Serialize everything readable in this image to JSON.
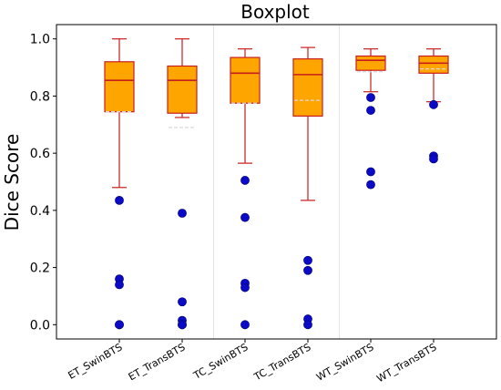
{
  "colors": {
    "box_fill": "#FFA500",
    "box_edge": "#C81E1E",
    "median": "#C81E1E",
    "whisker": "#C81E1E",
    "mean_line": "#D8D8D8",
    "outlier": "#0A0AC8",
    "outlier_edge": "#050580",
    "axes": "#000000",
    "background": "#FFFFFF"
  },
  "chart_data": {
    "type": "box",
    "title": "Boxplot",
    "xlabel": "",
    "ylabel": "Dice Score",
    "ylim": [
      -0.05,
      1.05
    ],
    "yticks": [
      0.0,
      0.2,
      0.4,
      0.6,
      0.8,
      1.0
    ],
    "ytick_labels": [
      "0.0",
      "0.2",
      "0.4",
      "0.6",
      "0.8",
      "1.0"
    ],
    "grid": false,
    "group_separators_after": [
      1,
      3
    ],
    "categories": [
      "ET_SwinBTS",
      "ET_TransBTS",
      "TC_SwinBTS",
      "TC_TransBTS",
      "WT_SwinBTS",
      "WT_TransBTS"
    ],
    "boxes": [
      {
        "label": "ET_SwinBTS",
        "whisker_low": 0.48,
        "q1": 0.745,
        "median": 0.855,
        "q3": 0.92,
        "whisker_high": 1.0,
        "mean": 0.745,
        "outliers": [
          0.435,
          0.16,
          0.14,
          0.0,
          0.0
        ]
      },
      {
        "label": "ET_TransBTS",
        "whisker_low": 0.725,
        "q1": 0.74,
        "median": 0.855,
        "q3": 0.905,
        "whisker_high": 1.0,
        "mean": 0.69,
        "outliers": [
          0.39,
          0.08,
          0.015,
          0.0,
          0.0
        ]
      },
      {
        "label": "TC_SwinBTS",
        "whisker_low": 0.565,
        "q1": 0.775,
        "median": 0.88,
        "q3": 0.935,
        "whisker_high": 0.965,
        "mean": 0.775,
        "outliers": [
          0.505,
          0.375,
          0.145,
          0.13,
          0.0
        ]
      },
      {
        "label": "TC_TransBTS",
        "whisker_low": 0.435,
        "q1": 0.73,
        "median": 0.875,
        "q3": 0.93,
        "whisker_high": 0.97,
        "mean": 0.785,
        "outliers": [
          0.225,
          0.19,
          0.02,
          0.0
        ]
      },
      {
        "label": "WT_SwinBTS",
        "whisker_low": 0.815,
        "q1": 0.89,
        "median": 0.925,
        "q3": 0.94,
        "whisker_high": 0.965,
        "mean": 0.885,
        "outliers": [
          0.795,
          0.75,
          0.535,
          0.49
        ]
      },
      {
        "label": "WT_TransBTS",
        "whisker_low": 0.78,
        "q1": 0.88,
        "median": 0.915,
        "q3": 0.94,
        "whisker_high": 0.965,
        "mean": 0.895,
        "outliers": [
          0.77,
          0.59,
          0.58
        ]
      }
    ]
  }
}
